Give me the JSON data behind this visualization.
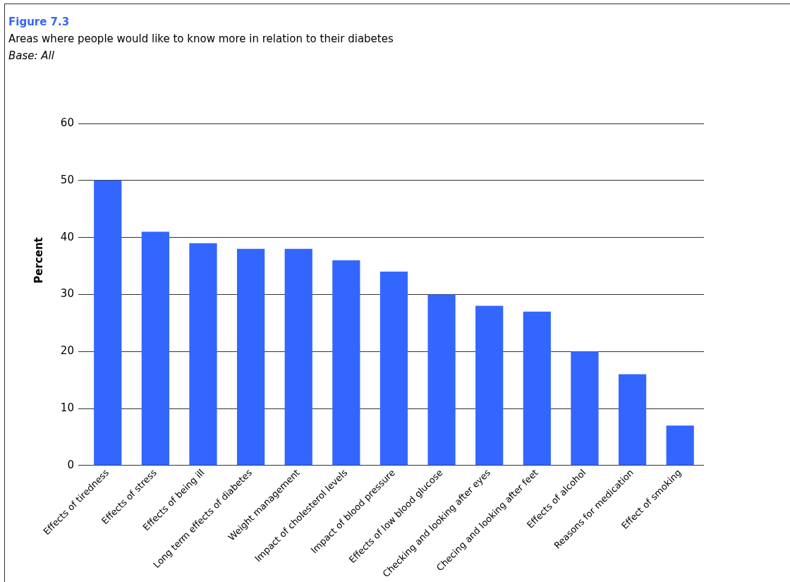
{
  "chart_data": {
    "type": "bar",
    "title": "Figure 7.3",
    "subtitle": "Areas where people would like to know more in relation to their diabetes",
    "annotations": [
      "Base: All"
    ],
    "ylabel": "Percent",
    "categories": [
      "Effects of tiredness",
      "Effects of stress",
      "Effects of being ill",
      "Long term effects of diabetes",
      "Weight management",
      "Impact of cholesterol levels",
      "Impact of blood pressure",
      "Effects of low blood glucose",
      "Checking and looking after eyes",
      "Checing and looking after feet",
      "Effects of alcohol",
      "Reasons for medication",
      "Effect of smoking"
    ],
    "values": [
      50,
      41,
      39,
      38,
      38,
      36,
      34,
      30,
      28,
      27,
      20,
      16,
      7
    ],
    "color": "#3366ff",
    "ylim": [
      0,
      60
    ],
    "yticks": [
      0,
      10,
      20,
      30,
      40,
      50,
      60
    ],
    "grid": "y"
  }
}
